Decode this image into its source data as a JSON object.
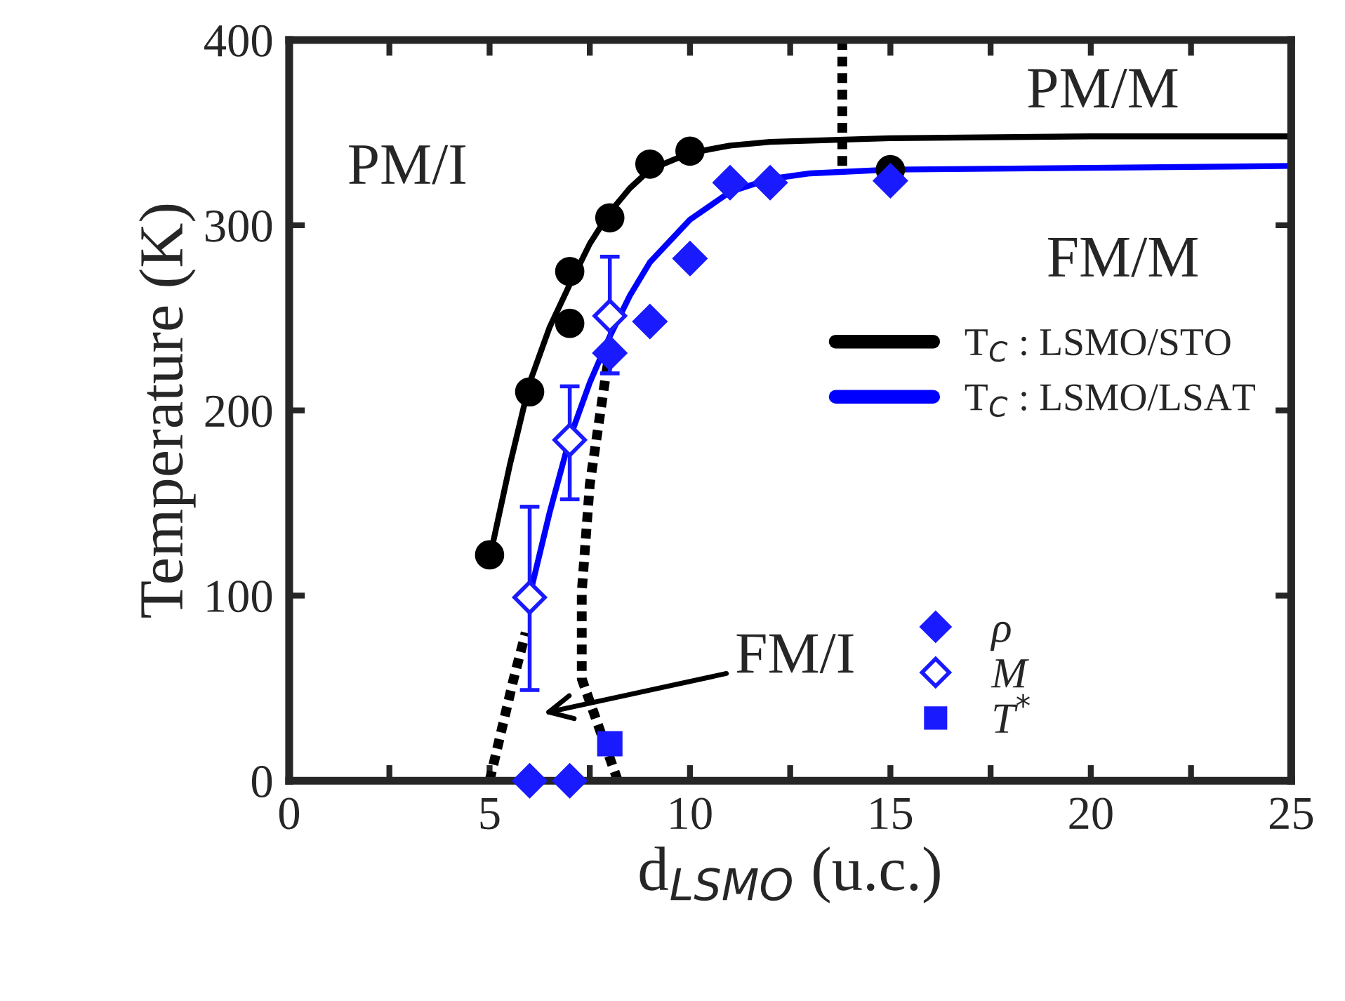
{
  "chart_data": {
    "type": "scatter",
    "xlabel": "d$_{LSMO}$ (u.c.)",
    "ylabel": "Temperature (K)",
    "xlim": [
      0,
      25
    ],
    "ylim": [
      0,
      400
    ],
    "xticks": [
      0,
      {
        "value": 2.5,
        "label": null
      },
      5,
      {
        "value": 7.5,
        "label": null
      },
      10,
      {
        "value": 12.5,
        "label": null
      },
      15,
      {
        "value": 17.5,
        "label": null
      },
      20,
      {
        "value": 22.5,
        "label": null
      },
      25
    ],
    "yticks": [
      0,
      100,
      200,
      300,
      400
    ],
    "grid": false,
    "legend": "right",
    "series": [
      {
        "type": "line",
        "name": "T$_{C}$ : LSMO/STO",
        "color": "#000000",
        "marker": "none",
        "line_style": "solid",
        "x": [
          5,
          5.5,
          6,
          6.5,
          7,
          7.5,
          8,
          8.5,
          9,
          10,
          11,
          12,
          15,
          20,
          25
        ],
        "values": [
          120,
          170,
          215,
          245,
          268,
          290,
          307,
          320,
          330,
          339,
          343,
          345,
          347,
          348,
          348
        ]
      },
      {
        "type": "line",
        "name": "T$_{C}$ : LSMO/LSAT",
        "color": "#0000ff",
        "marker": "none",
        "line_style": "solid",
        "x": [
          6,
          6.5,
          7,
          7.5,
          8,
          8.5,
          9,
          10,
          11,
          12,
          13,
          15,
          20,
          25
        ],
        "values": [
          100,
          145,
          185,
          215,
          240,
          262,
          280,
          303,
          318,
          325,
          328,
          330,
          331,
          332
        ]
      },
      {
        "type": "line",
        "color": "#000000",
        "marker": "none",
        "line_style": "dotted",
        "x": [
          5.0,
          5.6,
          5.9
        ],
        "values": [
          0,
          55,
          80
        ]
      },
      {
        "type": "line",
        "color": "#000000",
        "marker": "none",
        "line_style": "dotted",
        "x": [
          8.2,
          7.3,
          7.3,
          7.5,
          7.9,
          8.0
        ],
        "values": [
          0,
          55,
          102,
          160,
          219,
          231
        ]
      },
      {
        "type": "line",
        "color": "#000000",
        "marker": "none",
        "line_style": "dotted",
        "x": [
          13.8,
          13.8
        ],
        "values": [
          400,
          329
        ]
      },
      {
        "color": "#000000",
        "marker": "circle",
        "x": [
          5,
          6,
          7,
          7,
          8,
          9,
          10,
          15
        ],
        "values": [
          122,
          210,
          247,
          275,
          304,
          333,
          340,
          330
        ]
      },
      {
        "name": "ρ",
        "color": "#1a1aff",
        "marker": "diamond",
        "x": [
          6,
          7,
          8,
          9,
          10,
          11,
          12,
          15
        ],
        "values": [
          0,
          0,
          231,
          248,
          282,
          323,
          323,
          324
        ]
      },
      {
        "name": "M",
        "color": "#1a1aff",
        "marker": "diamond",
        "x": [
          6,
          7,
          8
        ],
        "values": [
          99,
          184,
          251
        ],
        "errors": [
          [
            49,
            148
          ],
          [
            152,
            213
          ],
          [
            220,
            283
          ]
        ]
      },
      {
        "name": "T$^{*}$",
        "color": "#1a1aff",
        "marker": "square",
        "x": [
          8
        ],
        "values": [
          20
        ]
      }
    ],
    "annotations": [
      "PM/I",
      "PM/M",
      "FM/M",
      "FM/I"
    ]
  }
}
